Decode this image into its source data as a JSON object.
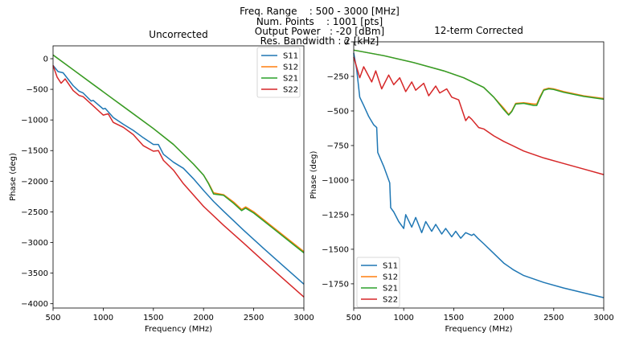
{
  "suptitle_lines": [
    "Freq. Range    : 500 - 3000 [MHz]",
    "Num. Points    : 1001 [pts]",
    "Output Power   : -20 [dBm]",
    "Res. Bandwidth : 2 [kHz]"
  ],
  "chart_data": [
    {
      "type": "line",
      "title": "Uncorrected",
      "xlabel": "Frequency (MHz)",
      "ylabel": "Phase (deg)",
      "xlim": [
        500,
        3000
      ],
      "ylim": [
        -4070,
        210
      ],
      "xticks": [
        500,
        1000,
        1500,
        2000,
        2500,
        3000
      ],
      "yticks": [
        0,
        -500,
        -1000,
        -1500,
        -2000,
        -2500,
        -3000,
        -3500,
        -4000
      ],
      "grid": false,
      "legend": "top-right",
      "series": [
        {
          "name": "S11",
          "color": "#1f77b4",
          "x": [
            500,
            550,
            600,
            700,
            760,
            800,
            880,
            900,
            1000,
            1020,
            1100,
            1200,
            1300,
            1400,
            1500,
            1550,
            1600,
            1700,
            1800,
            1900,
            2000,
            2100,
            2200,
            2400,
            2600,
            2800,
            3000
          ],
          "y": [
            -110,
            -210,
            -230,
            -440,
            -530,
            -560,
            -690,
            -680,
            -820,
            -810,
            -960,
            -1070,
            -1170,
            -1290,
            -1400,
            -1400,
            -1560,
            -1690,
            -1790,
            -1960,
            -2150,
            -2330,
            -2490,
            -2800,
            -3100,
            -3390,
            -3680
          ]
        },
        {
          "name": "S12",
          "color": "#ff7f0e",
          "x": [
            500,
            700,
            900,
            1100,
            1300,
            1500,
            1700,
            1900,
            2000,
            2050,
            2100,
            2200,
            2300,
            2380,
            2420,
            2500,
            2700,
            2900,
            3000
          ],
          "y": [
            60,
            -180,
            -420,
            -660,
            -900,
            -1140,
            -1400,
            -1720,
            -1900,
            -2030,
            -2190,
            -2220,
            -2340,
            -2460,
            -2420,
            -2500,
            -2760,
            -3020,
            -3150
          ]
        },
        {
          "name": "S21",
          "color": "#2ca02c",
          "x": [
            500,
            700,
            900,
            1100,
            1300,
            1500,
            1700,
            1900,
            2000,
            2050,
            2100,
            2200,
            2300,
            2380,
            2420,
            2500,
            2700,
            2900,
            3000
          ],
          "y": [
            60,
            -180,
            -420,
            -660,
            -900,
            -1140,
            -1400,
            -1720,
            -1900,
            -2040,
            -2210,
            -2230,
            -2360,
            -2480,
            -2440,
            -2520,
            -2780,
            -3040,
            -3170
          ]
        },
        {
          "name": "S22",
          "color": "#d62728",
          "x": [
            500,
            540,
            580,
            620,
            700,
            760,
            800,
            900,
            1000,
            1050,
            1100,
            1200,
            1300,
            1400,
            1500,
            1550,
            1600,
            1700,
            1800,
            2000,
            2200,
            2400,
            2600,
            2800,
            3000
          ],
          "y": [
            -110,
            -300,
            -400,
            -330,
            -520,
            -600,
            -620,
            -770,
            -920,
            -900,
            -1040,
            -1120,
            -1240,
            -1420,
            -1510,
            -1500,
            -1660,
            -1820,
            -2040,
            -2410,
            -2720,
            -3010,
            -3310,
            -3600,
            -3890
          ]
        }
      ]
    },
    {
      "type": "line",
      "title": "12-term Corrected",
      "xlabel": "Frequency (MHz)",
      "ylabel": "Phase (deg)",
      "xlim": [
        500,
        3000
      ],
      "ylim": [
        -1925,
        0
      ],
      "xticks": [
        500,
        1000,
        1500,
        2000,
        2500,
        3000
      ],
      "yticks": [
        0,
        -250,
        -500,
        -750,
        -1000,
        -1250,
        -1500,
        -1750
      ],
      "grid": false,
      "legend": "bottom-left",
      "series": [
        {
          "name": "S11",
          "color": "#1f77b4",
          "x": [
            500,
            530,
            560,
            600,
            650,
            700,
            730,
            740,
            800,
            860,
            870,
            900,
            950,
            1000,
            1020,
            1080,
            1120,
            1180,
            1220,
            1280,
            1320,
            1380,
            1420,
            1480,
            1520,
            1570,
            1620,
            1680,
            1700,
            1740,
            1800,
            1900,
            2000,
            2100,
            2200,
            2400,
            2600,
            2800,
            3000
          ],
          "y": [
            -80,
            -200,
            -400,
            -460,
            -540,
            -600,
            -620,
            -800,
            -900,
            -1020,
            -1200,
            -1230,
            -1300,
            -1350,
            -1250,
            -1340,
            -1270,
            -1380,
            -1300,
            -1370,
            -1320,
            -1390,
            -1350,
            -1410,
            -1370,
            -1420,
            -1380,
            -1400,
            -1390,
            -1420,
            -1460,
            -1530,
            -1600,
            -1650,
            -1690,
            -1740,
            -1780,
            -1815,
            -1850
          ]
        },
        {
          "name": "S12",
          "color": "#ff7f0e",
          "x": [
            500,
            800,
            1100,
            1400,
            1600,
            1800,
            1900,
            2000,
            2050,
            2080,
            2120,
            2200,
            2300,
            2330,
            2360,
            2400,
            2450,
            2500,
            2600,
            2800,
            3000
          ],
          "y": [
            -60,
            -100,
            -150,
            -210,
            -260,
            -330,
            -400,
            -480,
            -525,
            -500,
            -445,
            -440,
            -450,
            -450,
            -400,
            -345,
            -335,
            -340,
            -360,
            -390,
            -410
          ]
        },
        {
          "name": "S21",
          "color": "#2ca02c",
          "x": [
            500,
            800,
            1100,
            1400,
            1600,
            1800,
            1900,
            2000,
            2050,
            2080,
            2120,
            2200,
            2300,
            2330,
            2360,
            2400,
            2450,
            2500,
            2600,
            2800,
            3000
          ],
          "y": [
            -60,
            -100,
            -150,
            -210,
            -260,
            -330,
            -400,
            -490,
            -530,
            -505,
            -450,
            -445,
            -460,
            -460,
            -410,
            -350,
            -340,
            -345,
            -365,
            -395,
            -415
          ]
        },
        {
          "name": "S22",
          "color": "#d62728",
          "x": [
            500,
            540,
            560,
            600,
            680,
            720,
            780,
            850,
            900,
            960,
            1020,
            1080,
            1120,
            1200,
            1250,
            1320,
            1360,
            1430,
            1480,
            1550,
            1620,
            1650,
            1680,
            1750,
            1800,
            1900,
            2000,
            2200,
            2400,
            2600,
            2800,
            3000
          ],
          "y": [
            -110,
            -210,
            -260,
            -180,
            -290,
            -210,
            -340,
            -240,
            -310,
            -260,
            -360,
            -290,
            -350,
            -300,
            -390,
            -320,
            -370,
            -340,
            -400,
            -420,
            -570,
            -540,
            -560,
            -620,
            -630,
            -680,
            -720,
            -790,
            -840,
            -880,
            -920,
            -960
          ]
        }
      ]
    }
  ]
}
